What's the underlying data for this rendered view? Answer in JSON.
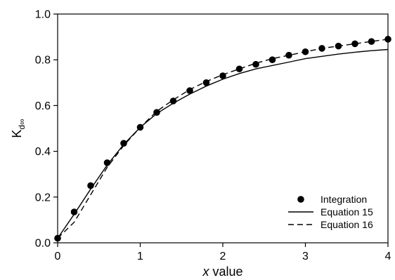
{
  "chart_data": {
    "type": "line",
    "title": "",
    "xlabel": {
      "italic": "x",
      "rest": " value"
    },
    "ylabel": {
      "main": "K",
      "sub": "d∞"
    },
    "xlim": [
      0,
      4
    ],
    "ylim": [
      0,
      1.0
    ],
    "x_ticks": [
      "0",
      "1",
      "2",
      "3",
      "4"
    ],
    "y_ticks": [
      "0.0",
      "0.2",
      "0.4",
      "0.6",
      "0.8",
      "1.0"
    ],
    "grid": false,
    "legend_position": "lower-right",
    "series": [
      {
        "name": "Integration",
        "style": "markers",
        "x": [
          0,
          0.2,
          0.4,
          0.6,
          0.8,
          1.0,
          1.2,
          1.4,
          1.6,
          1.8,
          2.0,
          2.2,
          2.4,
          2.6,
          2.8,
          3.0,
          3.2,
          3.4,
          3.6,
          3.8,
          4.0
        ],
        "y": [
          0.02,
          0.135,
          0.25,
          0.35,
          0.435,
          0.505,
          0.57,
          0.62,
          0.665,
          0.7,
          0.73,
          0.76,
          0.78,
          0.8,
          0.82,
          0.835,
          0.85,
          0.86,
          0.87,
          0.88,
          0.89
        ]
      },
      {
        "name": "Equation 15",
        "style": "solid",
        "x": [
          0,
          0.2,
          0.4,
          0.6,
          0.8,
          1.0,
          1.2,
          1.4,
          1.6,
          1.8,
          2.0,
          2.2,
          2.4,
          2.6,
          2.8,
          3.0,
          3.2,
          3.4,
          3.6,
          3.8,
          4.0
        ],
        "y": [
          0.02,
          0.125,
          0.235,
          0.34,
          0.43,
          0.505,
          0.565,
          0.61,
          0.65,
          0.685,
          0.715,
          0.74,
          0.76,
          0.775,
          0.79,
          0.805,
          0.815,
          0.825,
          0.833,
          0.84,
          0.845
        ]
      },
      {
        "name": "Equation 16",
        "style": "dashed",
        "x": [
          0,
          0.2,
          0.4,
          0.6,
          0.8,
          1.0,
          1.2,
          1.4,
          1.6,
          1.8,
          2.0,
          2.2,
          2.4,
          2.6,
          2.8,
          3.0,
          3.2,
          3.4,
          3.6,
          3.8,
          4.0
        ],
        "y": [
          0.02,
          0.09,
          0.21,
          0.33,
          0.425,
          0.505,
          0.575,
          0.625,
          0.67,
          0.705,
          0.735,
          0.76,
          0.785,
          0.805,
          0.82,
          0.835,
          0.85,
          0.86,
          0.87,
          0.88,
          0.89
        ]
      }
    ]
  }
}
